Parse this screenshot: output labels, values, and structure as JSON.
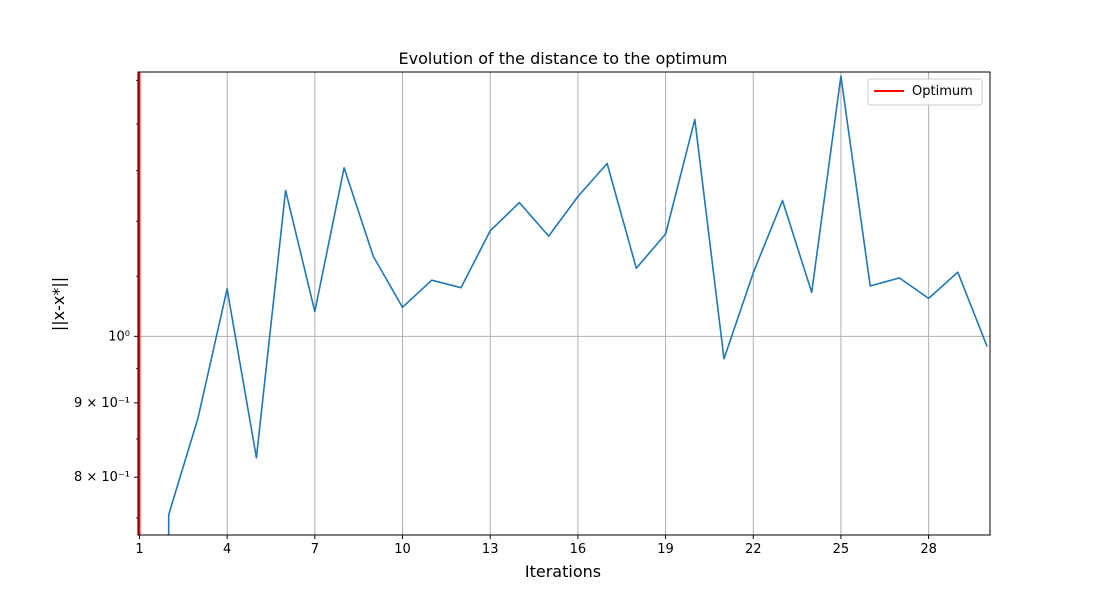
{
  "chart_data": {
    "type": "line",
    "title": "Evolution of the distance to the optimum",
    "xlabel": "Iterations",
    "ylabel": "||x-x*||",
    "yscale": "log",
    "grid": true,
    "legend_position": "top-right",
    "xlim": [
      0.95,
      30.1
    ],
    "ylim": [
      0.73,
      1.52
    ],
    "x_ticks": [
      1,
      4,
      7,
      10,
      13,
      16,
      19,
      22,
      25,
      28
    ],
    "y_ticks": [
      {
        "value": 0.8,
        "label": "8 × 10⁻¹"
      },
      {
        "value": 0.9,
        "label": "9 × 10⁻¹"
      },
      {
        "value": 1.0,
        "label": "10⁰"
      }
    ],
    "series": [
      {
        "name": "",
        "color": "#1f77b4",
        "x": [
          2,
          2,
          3,
          4,
          5,
          6,
          7,
          8,
          9,
          10,
          11,
          12,
          13,
          14,
          15,
          16,
          17,
          18,
          19,
          20,
          21,
          22,
          23,
          24,
          25,
          26,
          27,
          28,
          29,
          30
        ],
        "values": [
          0.72,
          0.754,
          0.878,
          1.078,
          0.825,
          1.26,
          1.04,
          1.306,
          1.135,
          1.047,
          1.093,
          1.08,
          1.182,
          1.236,
          1.172,
          1.248,
          1.315,
          1.114,
          1.176,
          1.41,
          0.965,
          1.106,
          1.24,
          1.072,
          1.51,
          1.083,
          1.097,
          1.062,
          1.107,
          0.984
        ]
      }
    ],
    "reference_line": {
      "name": "Optimum",
      "color": "#ff0000",
      "orientation": "vertical",
      "x": 1
    }
  }
}
